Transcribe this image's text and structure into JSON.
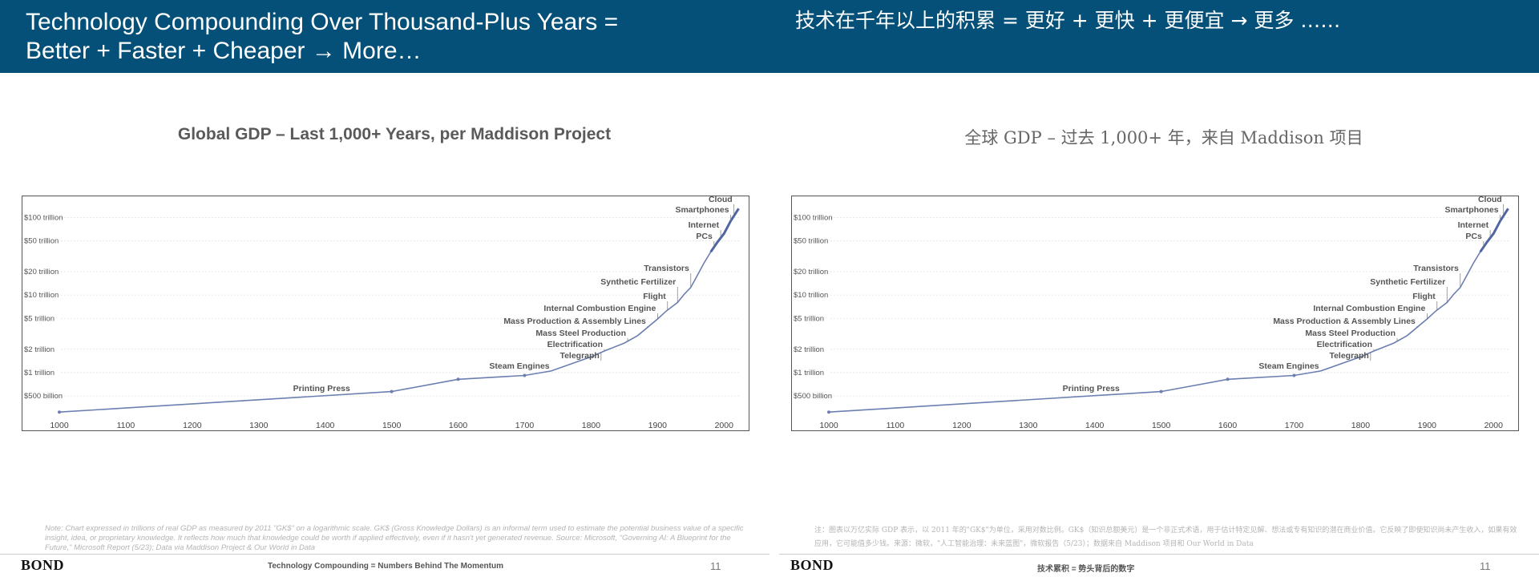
{
  "header": {
    "title_en": "Technology Compounding Over Thousand-Plus Years =\nBetter + Faster + Cheaper → More…",
    "title_zh": "技术在千年以上的积累 = 更好 +  更快 +  更便宜 →  更多 ……"
  },
  "chart_titles": {
    "en": "Global GDP – Last 1,000+ Years, per Maddison Project",
    "zh": "全球 GDP – 过去 1,000+  年，来自 Maddison 项目"
  },
  "chart_data": {
    "type": "line",
    "scale": "log",
    "x_ticks": [
      "1000",
      "1100",
      "1200",
      "1300",
      "1400",
      "1500",
      "1600",
      "1700",
      "1800",
      "1900",
      "2000"
    ],
    "xlim": [
      1000,
      2025
    ],
    "y_ticks": [
      {
        "value": 0.5,
        "label": "$500 billion"
      },
      {
        "value": 1,
        "label": "$1 trillion"
      },
      {
        "value": 2,
        "label": "$2 trillion"
      },
      {
        "value": 5,
        "label": "$5 trillion"
      },
      {
        "value": 10,
        "label": "$10 trillion"
      },
      {
        "value": 20,
        "label": "$20 trillion"
      },
      {
        "value": 50,
        "label": "$50 trillion"
      },
      {
        "value": 100,
        "label": "$100 trillion"
      }
    ],
    "ylim": [
      0.27,
      170
    ],
    "grid": true,
    "series": [
      {
        "x": [
          1000,
          1500,
          1600,
          1700,
          1740,
          1800,
          1820,
          1850,
          1870,
          1900,
          1913,
          1930,
          1940,
          1950,
          1960,
          1970,
          1980,
          1990,
          2000,
          2010,
          2022
        ],
        "y": [
          0.31,
          0.57,
          0.82,
          0.92,
          1.05,
          1.6,
          1.9,
          2.4,
          3.0,
          4.9,
          6.2,
          8.0,
          10.2,
          12.5,
          18.0,
          26.0,
          36.0,
          48.0,
          62.0,
          90.0,
          130.0
        ]
      }
    ],
    "annotations": [
      {
        "label": "Printing Press",
        "x": 1440
      },
      {
        "label": "Steam Engines",
        "x": 1740
      },
      {
        "label": "Telegraph",
        "x": 1815
      },
      {
        "label": "Electrification",
        "x": 1820
      },
      {
        "label": "Mass Steel Production",
        "x": 1855
      },
      {
        "label": "Mass Production & Assembly Lines",
        "x": 1885
      },
      {
        "label": "Internal Combustion Engine",
        "x": 1900
      },
      {
        "label": "Flight",
        "x": 1915
      },
      {
        "label": "Synthetic Fertilizer",
        "x": 1930
      },
      {
        "label": "Transistors",
        "x": 1950
      },
      {
        "label": "PCs",
        "x": 1985
      },
      {
        "label": "Internet",
        "x": 1995
      },
      {
        "label": "Smartphones",
        "x": 2010
      },
      {
        "label": "Cloud",
        "x": 2015
      }
    ]
  },
  "notes": {
    "en": "Note: Chart expressed in trillions of real GDP as measured by 2011 \"GK$\" on a logarithmic scale. GK$ (Gross Knowledge Dollars) is an informal term used to estimate the potential business value of a specific insight, idea, or proprietary knowledge. It reflects how much that knowledge could be worth if applied effectively, even if it hasn't yet generated revenue. Source: Microsoft, \"Governing AI: A Blueprint for the Future,\" Microsoft Report (5/23); Data via Maddison Project & Our World in Data",
    "zh": "注：图表以万亿实际 GDP 表示，以 2011 年的\"GK$\"为单位，采用对数比例。GK$（知识总额美元）是一个非正式术语，用于估计特定见解、想法或专有知识的潜在商业价值。它反映了即使知识尚未产生收入，如果有效应用，它可能值多少钱。来源：微软，\"人工智能治理：未来蓝图\"，微软报告（5/23）；数据来自 Maddison 项目和 Our World in Data"
  },
  "footer": {
    "logo": "BOND",
    "text_en": "Technology Compounding = Numbers Behind The Momentum",
    "text_zh": "技术累积 =  势头背后的数字",
    "page": "11"
  },
  "colors": {
    "banner": "#045078",
    "series_line": "#6c7fb0",
    "grid": "#e2e2e2"
  }
}
